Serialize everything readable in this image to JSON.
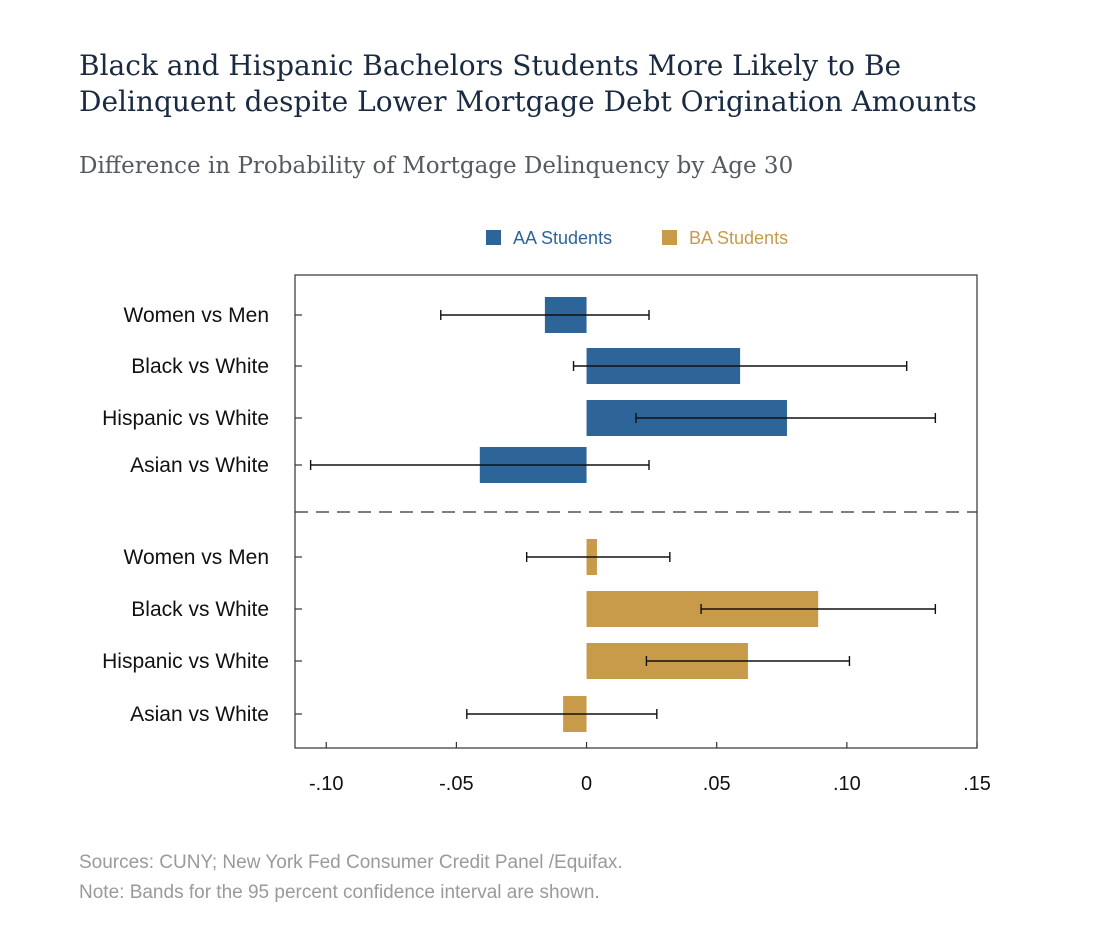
{
  "title_line1": "Black and Hispanic Bachelors Students More Likely to Be",
  "title_line2": "Delinquent despite Lower Mortgage Debt Origination Amounts",
  "subtitle": "Difference in Probability of Mortgage Delinquency by Age 30",
  "source_note": "Sources: CUNY; New York Fed Consumer Credit Panel /Equifax.",
  "ci_note": "Note: Bands for the 95 percent confidence interval are shown.",
  "chart_data": {
    "type": "bar",
    "orientation": "horizontal",
    "title": "",
    "xlabel": "",
    "ylabel": "",
    "xlim": [
      -0.112,
      0.15
    ],
    "x_ticks": [
      -0.1,
      -0.05,
      0,
      0.05,
      0.1,
      0.15
    ],
    "x_tick_labels": [
      "-.10",
      "-.05",
      "0",
      ".05",
      ".10",
      ".15"
    ],
    "grid": false,
    "legend_position": "top-center",
    "series": [
      {
        "name": "AA Students",
        "color": "#2e6599",
        "categories": [
          "Women vs Men",
          "Black vs White",
          "Hispanic vs White",
          "Asian vs White"
        ],
        "values": [
          -0.016,
          0.059,
          0.077,
          -0.041
        ],
        "ci_low": [
          -0.056,
          -0.005,
          0.019,
          -0.106
        ],
        "ci_high": [
          0.024,
          0.123,
          0.134,
          0.024
        ]
      },
      {
        "name": "BA Students",
        "color": "#c89b4b",
        "categories": [
          "Women vs Men",
          "Black vs White",
          "Hispanic vs White",
          "Asian vs White"
        ],
        "values": [
          0.004,
          0.089,
          0.062,
          -0.009
        ],
        "ci_low": [
          -0.023,
          0.044,
          0.023,
          -0.046
        ],
        "ci_high": [
          0.032,
          0.134,
          0.101,
          0.027
        ]
      }
    ]
  }
}
